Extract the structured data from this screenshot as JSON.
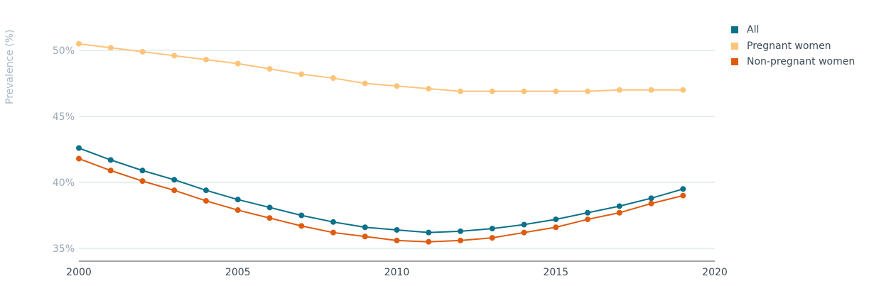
{
  "chart_data": {
    "type": "line",
    "ylabel": "Prevalence (%)",
    "xlabel": "",
    "xlim": [
      2000,
      2020
    ],
    "ylim": [
      34,
      53
    ],
    "x_ticks": [
      "2000",
      "2005",
      "2010",
      "2015",
      "2020"
    ],
    "y_ticks": [
      "35%",
      "40%",
      "45%",
      "50%"
    ],
    "grid": "horizontal",
    "legend_position": "top-right",
    "x": [
      2000,
      2001,
      2002,
      2003,
      2004,
      2005,
      2006,
      2007,
      2008,
      2009,
      2010,
      2011,
      2012,
      2013,
      2014,
      2015,
      2016,
      2017,
      2018,
      2019
    ],
    "series": [
      {
        "name": "All",
        "color": "#0b7189",
        "values": [
          42.6,
          41.7,
          40.9,
          40.2,
          39.4,
          38.7,
          38.1,
          37.5,
          37.0,
          36.6,
          36.4,
          36.2,
          36.3,
          36.5,
          36.8,
          37.2,
          37.7,
          38.2,
          38.8,
          39.5
        ]
      },
      {
        "name": "Pregnant women",
        "color": "#fbc47a",
        "values": [
          50.5,
          50.2,
          49.9,
          49.6,
          49.3,
          49.0,
          48.6,
          48.2,
          47.9,
          47.5,
          47.3,
          47.1,
          46.9,
          46.9,
          46.9,
          46.9,
          46.9,
          47.0,
          47.0,
          47.0
        ]
      },
      {
        "name": "Non-pregnant women",
        "color": "#de5b10",
        "values": [
          41.8,
          40.9,
          40.1,
          39.4,
          38.6,
          37.9,
          37.3,
          36.7,
          36.2,
          35.9,
          35.6,
          35.5,
          35.6,
          35.8,
          36.2,
          36.6,
          37.2,
          37.7,
          38.4,
          39.0
        ]
      }
    ]
  }
}
